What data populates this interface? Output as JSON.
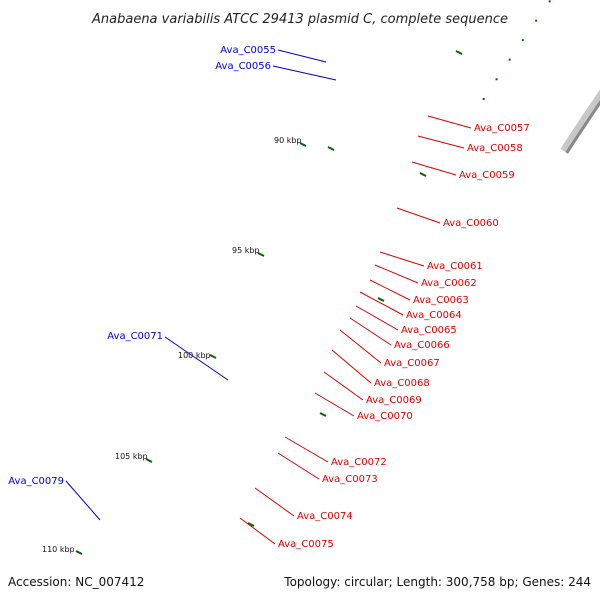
{
  "title": "Anabaena variabilis ATCC 29413 plasmid C, complete sequence",
  "footer": {
    "accession": "Accession: NC_007412",
    "summary": "Topology: circular; Length: 300,758 bp; Genes: 244"
  },
  "colors": {
    "forward": "#ff0000",
    "reverse": "#0000ff",
    "rna": "#ff3399",
    "pseudo": "#c0c0c0",
    "backbone": "#888888",
    "tick": "#006600"
  },
  "ticks": [
    {
      "label": "90 kbp"
    },
    {
      "label": "95 kbp"
    },
    {
      "label": "100 kbp"
    },
    {
      "label": "105 kbp"
    },
    {
      "label": "110 kbp"
    }
  ],
  "genes_left": [
    {
      "label": "Ava_C0055"
    },
    {
      "label": "Ava_C0056"
    },
    {
      "label": "Ava_C0071"
    },
    {
      "label": "Ava_C0079"
    }
  ],
  "genes_right": [
    {
      "label": "Ava_C0057"
    },
    {
      "label": "Ava_C0058"
    },
    {
      "label": "Ava_C0059"
    },
    {
      "label": "Ava_C0060"
    },
    {
      "label": "Ava_C0061"
    },
    {
      "label": "Ava_C0062"
    },
    {
      "label": "Ava_C0063"
    },
    {
      "label": "Ava_C0064"
    },
    {
      "label": "Ava_C0065"
    },
    {
      "label": "Ava_C0066"
    },
    {
      "label": "Ava_C0067"
    },
    {
      "label": "Ava_C0068"
    },
    {
      "label": "Ava_C0069"
    },
    {
      "label": "Ava_C0070"
    },
    {
      "label": "Ava_C0072"
    },
    {
      "label": "Ava_C0073"
    },
    {
      "label": "Ava_C0074"
    },
    {
      "label": "Ava_C0075"
    }
  ]
}
